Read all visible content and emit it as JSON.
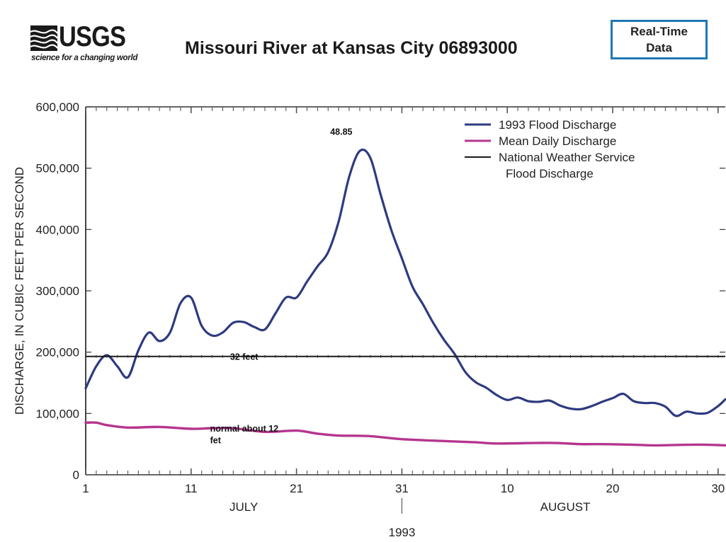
{
  "header": {
    "logo_text": "USGS",
    "logo_tagline": "science for a changing world",
    "title": "Missouri River at Kansas City 06893000",
    "realtime_button": [
      "Real-Time",
      "Data"
    ]
  },
  "colors": {
    "flood": "#2e3a80",
    "mean": "#b5358f",
    "nws": "#1a1a1a",
    "button_border": "#1f78b4"
  },
  "chart_data": {
    "type": "line",
    "title": "Missouri River at Kansas City 06893000",
    "xlabel": "1993",
    "ylabel": "DISCHARGE,  IN CUBIC FEET PER SECOND",
    "ylim": [
      0,
      600000
    ],
    "xlim_days": [
      1,
      62
    ],
    "y_ticks": [
      0,
      100000,
      200000,
      300000,
      400000,
      500000,
      600000
    ],
    "y_tick_labels": [
      "0",
      "100,000",
      "200,000",
      "300,000",
      "400,000",
      "500,000",
      "600,000"
    ],
    "x_ticks": [
      {
        "day": 1,
        "label": "1"
      },
      {
        "day": 11,
        "label": "11"
      },
      {
        "day": 21,
        "label": "21"
      },
      {
        "day": 31,
        "label": "31"
      },
      {
        "day": 41,
        "label": "10"
      },
      {
        "day": 51,
        "label": "20"
      },
      {
        "day": 61,
        "label": "30"
      }
    ],
    "month_labels": [
      {
        "day": 16,
        "label": "JULY"
      },
      {
        "day": 46.5,
        "label": "AUGUST"
      }
    ],
    "year_label": "1993",
    "year_divider_day": 31,
    "grid": false,
    "legend_position": "top-right",
    "legend": [
      {
        "series": "flood",
        "label": "1993 Flood Discharge"
      },
      {
        "series": "mean",
        "label": "Mean Daily Discharge"
      },
      {
        "series": "nws",
        "label": "National Weather Service",
        "label2": "Flood Discharge"
      }
    ],
    "series": [
      {
        "name": "1993 Flood Discharge",
        "key": "flood",
        "days": [
          1,
          2,
          3,
          4,
          5,
          6,
          7,
          8,
          9,
          10,
          11,
          12,
          13,
          14,
          15,
          16,
          17,
          18,
          19,
          20,
          21,
          22,
          23,
          24,
          25,
          26,
          27,
          28,
          29,
          30,
          31,
          32,
          33,
          34,
          35,
          36,
          37,
          38,
          39,
          40,
          41,
          42,
          43,
          44,
          45,
          46,
          47,
          48,
          49,
          50,
          51,
          52,
          53,
          54,
          55,
          56,
          57,
          58,
          59,
          60,
          61,
          62
        ],
        "values": [
          141000,
          177000,
          195000,
          177000,
          159000,
          203000,
          232000,
          218000,
          232000,
          280000,
          289000,
          243000,
          227000,
          232000,
          248000,
          249000,
          241000,
          237000,
          263000,
          289000,
          289000,
          315000,
          340000,
          363000,
          413000,
          486000,
          528000,
          517000,
          456000,
          399000,
          353000,
          307000,
          278000,
          247000,
          220000,
          197000,
          168000,
          151000,
          142000,
          130000,
          122000,
          126000,
          120000,
          119000,
          121000,
          113000,
          108000,
          107000,
          112000,
          119000,
          125000,
          132000,
          120000,
          117000,
          117000,
          111000,
          96000,
          103000,
          100000,
          101000,
          112000,
          123000
        ]
      },
      {
        "name": "Mean Daily Discharge",
        "key": "mean",
        "days": [
          1,
          2,
          3,
          5,
          8,
          11,
          13,
          15,
          18,
          21,
          23,
          25,
          28,
          31,
          35,
          38,
          40,
          45,
          48,
          50,
          53,
          55,
          58,
          60,
          62
        ],
        "values": [
          85000,
          85000,
          81000,
          77000,
          78000,
          75000,
          76000,
          76000,
          70000,
          72000,
          67000,
          64000,
          63000,
          58000,
          55000,
          53000,
          51000,
          52000,
          50000,
          50000,
          49000,
          48000,
          49000,
          49000,
          48000
        ]
      },
      {
        "name": "National Weather Service Flood Discharge",
        "key": "nws",
        "constant": 193000
      }
    ],
    "annotations": [
      {
        "text": "48.85",
        "day": 24.2,
        "value": 560000
      },
      {
        "text": "32 feet",
        "day": 14.7,
        "value": 193000
      },
      {
        "text": "normal about 12",
        "day": 12.8,
        "value": 76000
      },
      {
        "text": "fet",
        "day": 12.8,
        "value": 57000
      }
    ]
  }
}
